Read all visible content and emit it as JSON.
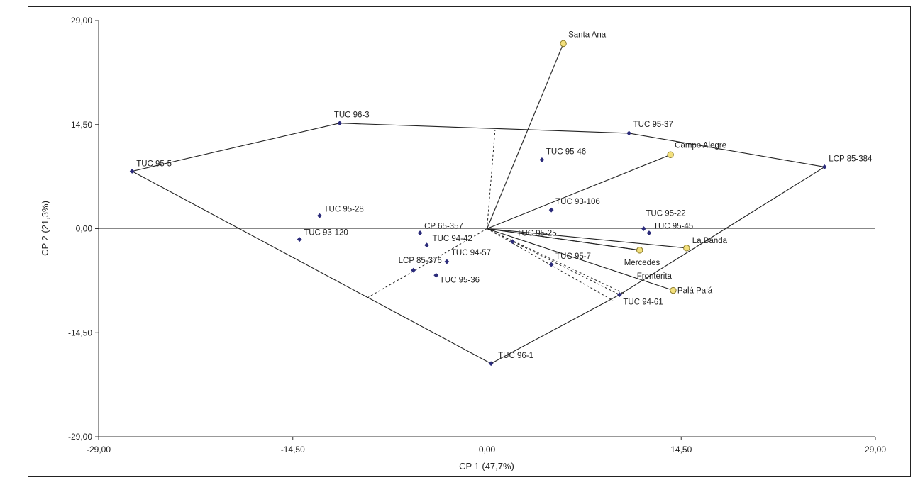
{
  "chart_data": {
    "type": "scatter",
    "title": "",
    "xlabel": "CP 1 (47,7%)",
    "ylabel": "CP 2 (21,3%)",
    "xlim": [
      -29,
      29
    ],
    "ylim": [
      -29,
      29
    ],
    "x_ticks": [
      "-29,00",
      "-14,50",
      "0,00",
      "14,50",
      "29,00"
    ],
    "y_ticks": [
      "29,00",
      "14,50",
      "0,00",
      "-14,50",
      "-29,00"
    ],
    "grid": false,
    "colors": {
      "genotype": "#2b2b7a",
      "environment": "#f3e07c",
      "environment_border": "#8a7a2a",
      "line": "#222222",
      "axis": "#888888"
    },
    "genotypes": [
      {
        "name": "TUC 96-3",
        "x": -11.0,
        "y": 14.7
      },
      {
        "name": "TUC 95-5",
        "x": -26.5,
        "y": 8.0
      },
      {
        "name": "TUC 95-28",
        "x": -12.5,
        "y": 1.8
      },
      {
        "name": "TUC 93-120",
        "x": -14.0,
        "y": -1.5
      },
      {
        "name": "CP 65-357",
        "x": -5.0,
        "y": -0.6
      },
      {
        "name": "TUC 94-42",
        "x": -4.5,
        "y": -2.3
      },
      {
        "name": "TUC 94-57",
        "x": -3.0,
        "y": -4.6
      },
      {
        "name": "LCP 85-376",
        "x": -5.5,
        "y": -5.8
      },
      {
        "name": "TUC 95-36",
        "x": -3.8,
        "y": -6.5
      },
      {
        "name": "TUC 96-1",
        "x": 0.3,
        "y": -18.8
      },
      {
        "name": "TUC 95-37",
        "x": 10.6,
        "y": 13.3
      },
      {
        "name": "TUC 95-46",
        "x": 4.1,
        "y": 9.6
      },
      {
        "name": "TUC 93-106",
        "x": 4.8,
        "y": 2.6
      },
      {
        "name": "LCP 85-384",
        "x": 25.2,
        "y": 8.6
      },
      {
        "name": "TUC 95-22",
        "x": 11.7,
        "y": 0.0
      },
      {
        "name": "TUC 95-45",
        "x": 12.1,
        "y": -0.6
      },
      {
        "name": "TUC 95-25",
        "x": 1.9,
        "y": -1.8
      },
      {
        "name": "TUC 95-7",
        "x": 4.8,
        "y": -5.0
      },
      {
        "name": "TUC 94-61",
        "x": 9.9,
        "y": -9.2
      }
    ],
    "environments": [
      {
        "name": "Santa Ana",
        "x": 5.7,
        "y": 25.8
      },
      {
        "name": "Campo Alegre",
        "x": 13.7,
        "y": 10.3
      },
      {
        "name": "La Banda",
        "x": 14.9,
        "y": -2.7
      },
      {
        "name": "Mercedes",
        "x": 11.4,
        "y": -3.0
      },
      {
        "name": "Fronterita",
        "x": 11.4,
        "y": -3.0
      },
      {
        "name": "Palá Palá",
        "x": 13.9,
        "y": -8.6
      }
    ],
    "hull": [
      "TUC 96-3",
      "TUC 95-37",
      "LCP 85-384",
      "TUC 94-61",
      "TUC 96-1",
      "TUC 95-5"
    ],
    "perpendiculars": [
      {
        "from": [
          0,
          0
        ],
        "to": [
          0.6,
          13.7
        ]
      },
      {
        "from": [
          0,
          0
        ],
        "to": [
          -8.9,
          -9.6
        ]
      },
      {
        "from": [
          0,
          0
        ],
        "to": [
          9.4,
          -10.0
        ]
      },
      {
        "from": [
          0,
          0
        ],
        "to": [
          9.9,
          -9.2
        ]
      },
      {
        "from": [
          0,
          0
        ],
        "to": [
          10.2,
          -9.0
        ]
      }
    ]
  }
}
